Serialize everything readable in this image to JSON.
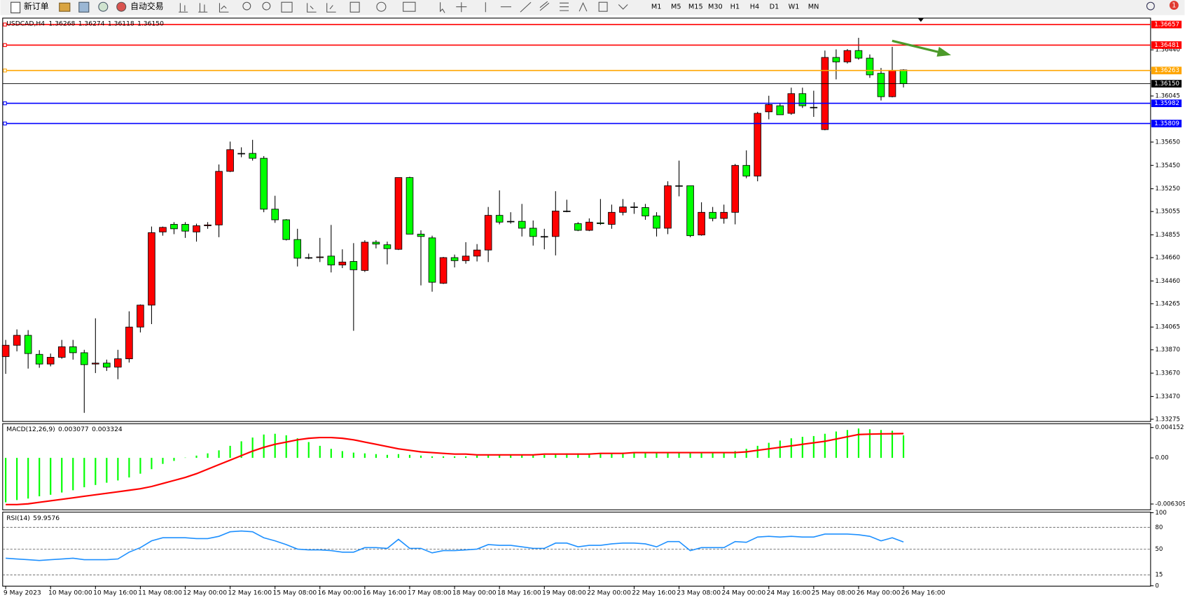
{
  "toolbar": {
    "new_order": "新订单",
    "auto_trading": "自动交易",
    "timeframes": [
      "M1",
      "M5",
      "M15",
      "M30",
      "H1",
      "H4",
      "D1",
      "W1",
      "MN"
    ],
    "notifications": "1"
  },
  "chart": {
    "symbol": "USDCAD,H4",
    "last_labels": [
      "1.36268",
      "1.36274",
      "1.36118",
      "1.36150"
    ],
    "up_color": "#ff0000",
    "down_color": "#00ff00",
    "ylim": [
      1.33256,
      1.36686
    ],
    "yticks": [
      {
        "value": 1.3644,
        "label": "1.36440"
      },
      1.36045,
      {
        "value": 1.3565,
        "label": "1.35650"
      },
      {
        "value": 1.3545,
        "label": "1.35450"
      },
      {
        "value": 1.3525,
        "label": "1.35250"
      },
      1.35055,
      1.34855,
      {
        "value": 1.3466,
        "label": "1.34660"
      },
      {
        "value": 1.3446,
        "label": "1.34460"
      },
      1.34265,
      1.34065,
      {
        "value": 1.3387,
        "label": "1.33870"
      },
      {
        "value": 1.3367,
        "label": "1.33670"
      },
      {
        "value": 1.3347,
        "label": "1.33470"
      },
      1.33275
    ],
    "price_lines": [
      {
        "value": 1.36657,
        "label": "1.36657",
        "color": "#ff0000"
      },
      {
        "value": 1.36481,
        "label": "1.36481",
        "color": "#ff0000"
      },
      {
        "value": 1.36263,
        "label": "1.36263",
        "color": "#ffa500"
      },
      {
        "value": 1.35982,
        "label": "1.35982",
        "color": "#0000ff"
      },
      {
        "value": 1.35809,
        "label": "1.35809",
        "color": "#0000ff"
      }
    ],
    "candles": [
      [
        1.33812,
        1.33955,
        1.33664,
        1.33909
      ],
      [
        1.33909,
        1.34045,
        1.33857,
        1.33994
      ],
      [
        1.33994,
        1.34039,
        1.33709,
        1.33838
      ],
      [
        1.33831,
        1.33867,
        1.33716,
        1.33748
      ],
      [
        1.33748,
        1.33838,
        1.33728,
        1.33806
      ],
      [
        1.33806,
        1.33955,
        1.33793,
        1.33896
      ],
      [
        1.33896,
        1.33955,
        1.33786,
        1.33845
      ],
      [
        1.33845,
        1.3387,
        1.3333,
        1.33743
      ],
      [
        1.33748,
        1.3414,
        1.33671,
        1.33756
      ],
      [
        1.33756,
        1.33786,
        1.33689,
        1.33722
      ],
      [
        1.33722,
        1.3387,
        1.33618,
        1.33793
      ],
      [
        1.33793,
        1.342,
        1.33761,
        1.34065
      ],
      [
        1.34065,
        1.34259,
        1.34019,
        1.34253
      ],
      [
        1.34253,
        1.34926,
        1.3409,
        1.34874
      ],
      [
        1.3488,
        1.34926,
        1.34848,
        1.34919
      ],
      [
        1.34945,
        1.34964,
        1.34861,
        1.34907
      ],
      [
        1.34945,
        1.34964,
        1.34829,
        1.34887
      ],
      [
        1.3488,
        1.34951,
        1.34797,
        1.34933
      ],
      [
        1.34933,
        1.34964,
        1.34907,
        1.3494
      ],
      [
        1.3494,
        1.35458,
        1.34835,
        1.35399
      ],
      [
        1.35399,
        1.35654,
        1.35393,
        1.35585
      ],
      [
        1.35553,
        1.35605,
        1.3552,
        1.35553
      ],
      [
        1.35553,
        1.35669,
        1.35491,
        1.35511
      ],
      [
        1.35511,
        1.3553,
        1.35049,
        1.35075
      ],
      [
        1.35075,
        1.3519,
        1.34958,
        1.34984
      ],
      [
        1.34984,
        1.3499,
        1.34807,
        1.34815
      ],
      [
        1.34815,
        1.34907,
        1.34584,
        1.34655
      ],
      [
        1.3466,
        1.34694,
        1.34647,
        1.3466
      ],
      [
        1.3466,
        1.34829,
        1.34622,
        1.34666
      ],
      [
        1.34673,
        1.3494,
        1.34533,
        1.34597
      ],
      [
        1.34597,
        1.34731,
        1.3457,
        1.34622
      ],
      [
        1.34627,
        1.34784,
        1.34033,
        1.34556
      ],
      [
        1.3455,
        1.34809,
        1.34537,
        1.34792
      ],
      [
        1.34792,
        1.34809,
        1.34739,
        1.34776
      ],
      [
        1.3477,
        1.34797,
        1.34602,
        1.34737
      ],
      [
        1.34731,
        1.35346,
        1.34725,
        1.35346
      ],
      [
        1.35346,
        1.35353,
        1.34861,
        1.34861
      ],
      [
        1.34861,
        1.34894,
        1.34422,
        1.34841
      ],
      [
        1.34829,
        1.34848,
        1.34368,
        1.34449
      ],
      [
        1.3444,
        1.34666,
        1.34434,
        1.3466
      ],
      [
        1.3466,
        1.34686,
        1.34576,
        1.34634
      ],
      [
        1.34634,
        1.34792,
        1.34608,
        1.34673
      ],
      [
        1.34673,
        1.34776,
        1.34627,
        1.34725
      ],
      [
        1.34725,
        1.35094,
        1.34622,
        1.35022
      ],
      [
        1.35022,
        1.35236,
        1.34945,
        1.34964
      ],
      [
        1.34971,
        1.35049,
        1.34951,
        1.34971
      ],
      [
        1.34971,
        1.3512,
        1.34841,
        1.34912
      ],
      [
        1.34912,
        1.34978,
        1.34763,
        1.34841
      ],
      [
        1.34841,
        1.34907,
        1.34731,
        1.34841
      ],
      [
        1.34841,
        1.35229,
        1.34679,
        1.35059
      ],
      [
        1.35059,
        1.35156,
        1.35049,
        1.35059
      ],
      [
        1.34951,
        1.34964,
        1.34887,
        1.34894
      ],
      [
        1.34894,
        1.34996,
        1.34887,
        1.34964
      ],
      [
        1.34958,
        1.35162,
        1.3494,
        1.34951
      ],
      [
        1.34945,
        1.35114,
        1.34907,
        1.35048
      ],
      [
        1.35048,
        1.35162,
        1.35022,
        1.35094
      ],
      [
        1.35094,
        1.35134,
        1.35035,
        1.35094
      ],
      [
        1.35089,
        1.3512,
        1.34984,
        1.35017
      ],
      [
        1.35017,
        1.35049,
        1.34841,
        1.34912
      ],
      [
        1.34912,
        1.35314,
        1.34861,
        1.35276
      ],
      [
        1.35276,
        1.35491,
        1.35185,
        1.35276
      ],
      [
        1.35276,
        1.35276,
        1.34835,
        1.34848
      ],
      [
        1.34854,
        1.35134,
        1.34848,
        1.35048
      ],
      [
        1.35048,
        1.35094,
        1.34971,
        1.34996
      ],
      [
        1.34996,
        1.35114,
        1.34951,
        1.35048
      ],
      [
        1.35048,
        1.35463,
        1.34945,
        1.3545
      ],
      [
        1.3545,
        1.35579,
        1.3534,
        1.35359
      ],
      [
        1.35359,
        1.35909,
        1.35314,
        1.35896
      ],
      [
        1.35909,
        1.36047,
        1.35845,
        1.35971
      ],
      [
        1.35961,
        1.3598,
        1.35884,
        1.35884
      ],
      [
        1.35896,
        1.36116,
        1.35884,
        1.36065
      ],
      [
        1.36065,
        1.36116,
        1.35942,
        1.35961
      ],
      [
        1.35948,
        1.3609,
        1.35866,
        1.35948
      ],
      [
        1.35757,
        1.36434,
        1.35751,
        1.36375
      ],
      [
        1.36375,
        1.36444,
        1.36187,
        1.36337
      ],
      [
        1.36337,
        1.36447,
        1.36323,
        1.36434
      ],
      [
        1.36434,
        1.36543,
        1.36356,
        1.36369
      ],
      [
        1.36369,
        1.36401,
        1.362,
        1.36226
      ],
      [
        1.36239,
        1.36285,
        1.36006,
        1.36039
      ],
      [
        1.36039,
        1.36466,
        1.36033,
        1.36265
      ],
      [
        1.36268,
        1.36274,
        1.36118,
        1.3615
      ]
    ],
    "x_labels": [
      "9 May 2023",
      "10 May 00:00",
      "10 May 16:00",
      "11 May 08:00",
      "12 May 00:00",
      "12 May 16:00",
      "15 May 08:00",
      "16 May 00:00",
      "16 May 16:00",
      "17 May 08:00",
      "18 May 00:00",
      "18 May 16:00",
      "19 May 08:00",
      "22 May 00:00",
      "22 May 16:00",
      "23 May 08:00",
      "24 May 00:00",
      "24 May 16:00",
      "25 May 08:00",
      "26 May 00:00",
      "26 May 16:00"
    ],
    "macd": {
      "label": "MACD(12,26,9)",
      "hist_color": "#00ff00",
      "signal_color": "#ff0000",
      "ylim": [
        -0.007004,
        0.004564
      ],
      "yticks": [
        0.004152,
        {
          "value": 0,
          "label": "0.00"
        },
        -0.006309
      ],
      "hist": [
        -0.006077,
        -0.005768,
        -0.005562,
        -0.005253,
        -0.005047,
        -0.004738,
        -0.004429,
        -0.004017,
        -0.003708,
        -0.003399,
        -0.00309,
        -0.002678,
        -0.002163,
        -0.001545,
        -0.000824,
        -0.000412,
        4e-05,
        0.000309,
        0.000618,
        0.00103,
        0.001648,
        0.002266,
        0.002781,
        0.003193,
        0.003296,
        0.00309,
        0.002678,
        0.002163,
        0.001648,
        0.001236,
        0.000927,
        0.000721,
        0.000618,
        0.000515,
        0.000412,
        0.000515,
        0.000412,
        0.000309,
        0.000206,
        0.000206,
        0.000206,
        0.000206,
        0.000309,
        0.000412,
        0.000412,
        0.000412,
        0.000412,
        0.000412,
        0.000412,
        0.000515,
        0.000618,
        0.000618,
        0.000618,
        0.000618,
        0.000618,
        0.000721,
        0.000721,
        0.000721,
        0.000721,
        0.000824,
        0.000824,
        0.000824,
        0.000824,
        0.000824,
        0.000824,
        0.000927,
        0.001236,
        0.001648,
        0.00206,
        0.002369,
        0.002678,
        0.002884,
        0.002987,
        0.003296,
        0.003605,
        0.003811,
        0.004017,
        0.003914,
        0.003811,
        0.003708,
        0.003077
      ],
      "signal": [
        -0.006386,
        -0.006386,
        -0.006283,
        -0.006077,
        -0.005871,
        -0.005665,
        -0.005459,
        -0.005253,
        -0.005047,
        -0.004841,
        -0.004635,
        -0.004429,
        -0.004223,
        -0.003914,
        -0.003502,
        -0.00309,
        -0.002678,
        -0.002163,
        -0.001545,
        -0.000927,
        -0.000309,
        0.000309,
        0.000927,
        0.001442,
        0.001854,
        0.002163,
        0.002472,
        0.002678,
        0.002781,
        0.002781,
        0.002678,
        0.002472,
        0.002163,
        0.001854,
        0.001545,
        0.001236,
        0.00103,
        0.000824,
        0.000721,
        0.000618,
        0.000515,
        0.000515,
        0.000412,
        0.000412,
        0.000412,
        0.000412,
        0.000412,
        0.000412,
        0.000515,
        0.000515,
        0.000515,
        0.000515,
        0.000515,
        0.000618,
        0.000618,
        0.000618,
        0.000721,
        0.000721,
        0.000721,
        0.000721,
        0.000721,
        0.000721,
        0.000721,
        0.000721,
        0.000721,
        0.000721,
        0.000824,
        0.00103,
        0.001236,
        0.001442,
        0.001648,
        0.001854,
        0.00206,
        0.002266,
        0.002575,
        0.002884,
        0.003193,
        0.00325,
        0.00328,
        0.0033,
        0.003324
      ]
    },
    "rsi": {
      "label": "RSI(14)",
      "color": "#1e90ff",
      "ylim": [
        0,
        100
      ],
      "yticks": [
        100,
        80,
        50,
        15,
        0
      ],
      "values": [
        37.7,
        36.7,
        35.7,
        34.6,
        35.7,
        36.7,
        37.7,
        35.7,
        35.7,
        35.7,
        36.7,
        46.0,
        52.2,
        61.5,
        65.7,
        65.7,
        65.7,
        64.6,
        64.6,
        67.7,
        73.9,
        75.0,
        73.9,
        65.7,
        61.5,
        56.4,
        50.2,
        49.1,
        49.1,
        48.1,
        46.0,
        46.0,
        52.2,
        52.2,
        51.2,
        63.6,
        51.2,
        51.2,
        45.0,
        48.1,
        48.1,
        49.1,
        50.2,
        56.4,
        55.3,
        55.3,
        53.3,
        51.2,
        51.2,
        58.4,
        58.4,
        53.3,
        55.3,
        55.3,
        57.4,
        58.4,
        58.4,
        57.4,
        53.3,
        60.5,
        60.5,
        48.1,
        52.2,
        52.2,
        52.2,
        60.5,
        59.5,
        66.7,
        67.7,
        66.7,
        67.7,
        66.7,
        66.7,
        70.8,
        70.8,
        70.8,
        69.8,
        67.7,
        61.5,
        65.7,
        59.9576
      ]
    }
  }
}
